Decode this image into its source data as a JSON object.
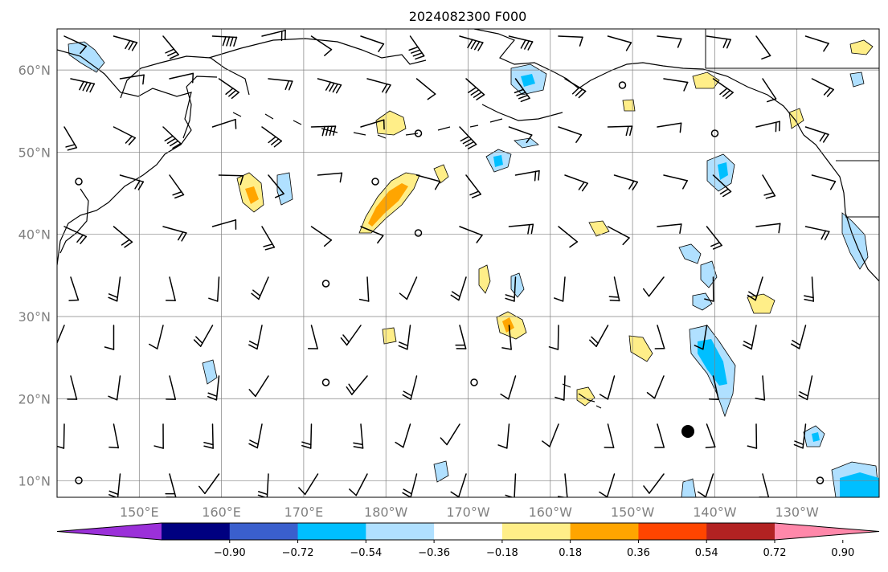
{
  "title": "2024082300 F000",
  "map": {
    "lon_min": 140,
    "lon_max": 240,
    "lat_min": 8,
    "lat_max": 65,
    "lat_labels": [
      {
        "lat": 60,
        "text": "60°N"
      },
      {
        "lat": 50,
        "text": "50°N"
      },
      {
        "lat": 40,
        "text": "40°N"
      },
      {
        "lat": 30,
        "text": "30°N"
      },
      {
        "lat": 20,
        "text": "20°N"
      },
      {
        "lat": 10,
        "text": "10°N"
      }
    ],
    "lon_labels": [
      {
        "lon": 150,
        "text": "150°E"
      },
      {
        "lon": 160,
        "text": "160°E"
      },
      {
        "lon": 170,
        "text": "170°E"
      },
      {
        "lon": 180,
        "text": "180°W"
      },
      {
        "lon": 190,
        "text": "170°W"
      },
      {
        "lon": 200,
        "text": "160°W"
      },
      {
        "lon": 210,
        "text": "150°W"
      },
      {
        "lon": 220,
        "text": "140°W"
      },
      {
        "lon": 230,
        "text": "130°W"
      }
    ]
  },
  "colorbar": {
    "colors": [
      "#9b30d9",
      "#000080",
      "#3a5fcd",
      "#00bfff",
      "#b0e0ff",
      "#ffffff",
      "#ffee88",
      "#ffa500",
      "#ff4500",
      "#b22222",
      "#ff88aa"
    ],
    "tick_labels": [
      "−0.90",
      "−0.72",
      "−0.54",
      "−0.36",
      "−0.18",
      "0.18",
      "0.36",
      "0.54",
      "0.72",
      "0.90"
    ]
  }
}
